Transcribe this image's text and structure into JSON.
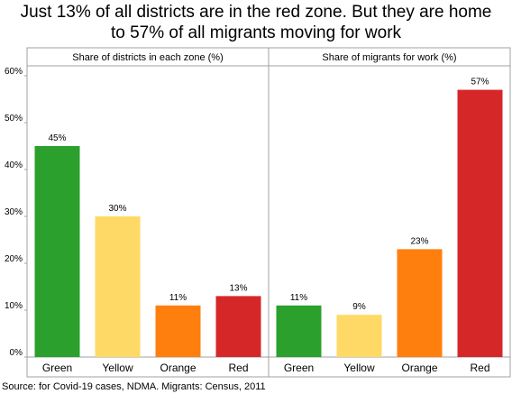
{
  "title_line1": "Just 13% of all districts are in the red zone. But they are home",
  "title_line2": "to 57% of all migrants moving for work",
  "source": "Source: for Covid-19 cases, NDMA. Migrants: Census, 2011",
  "chart_data": {
    "type": "bar",
    "ylim": [
      0,
      62
    ],
    "yticks": [
      0,
      10,
      20,
      30,
      40,
      50,
      60
    ],
    "ytick_labels": [
      "0%",
      "10%",
      "20%",
      "30%",
      "40%",
      "50%",
      "60%"
    ],
    "grid": false,
    "categories": [
      "Green",
      "Yellow",
      "Orange",
      "Red"
    ],
    "colors": [
      "#2ca02c",
      "#ffd966",
      "#ff7f0e",
      "#d62728"
    ],
    "panels": [
      {
        "header": "Share of districts in each zone (%)",
        "values": [
          45,
          30,
          11,
          13
        ],
        "labels": [
          "45%",
          "30%",
          "11%",
          "13%"
        ]
      },
      {
        "header": "Share of migrants for work (%)",
        "values": [
          11,
          9,
          23,
          57
        ],
        "labels": [
          "11%",
          "9%",
          "23%",
          "57%"
        ]
      }
    ]
  }
}
